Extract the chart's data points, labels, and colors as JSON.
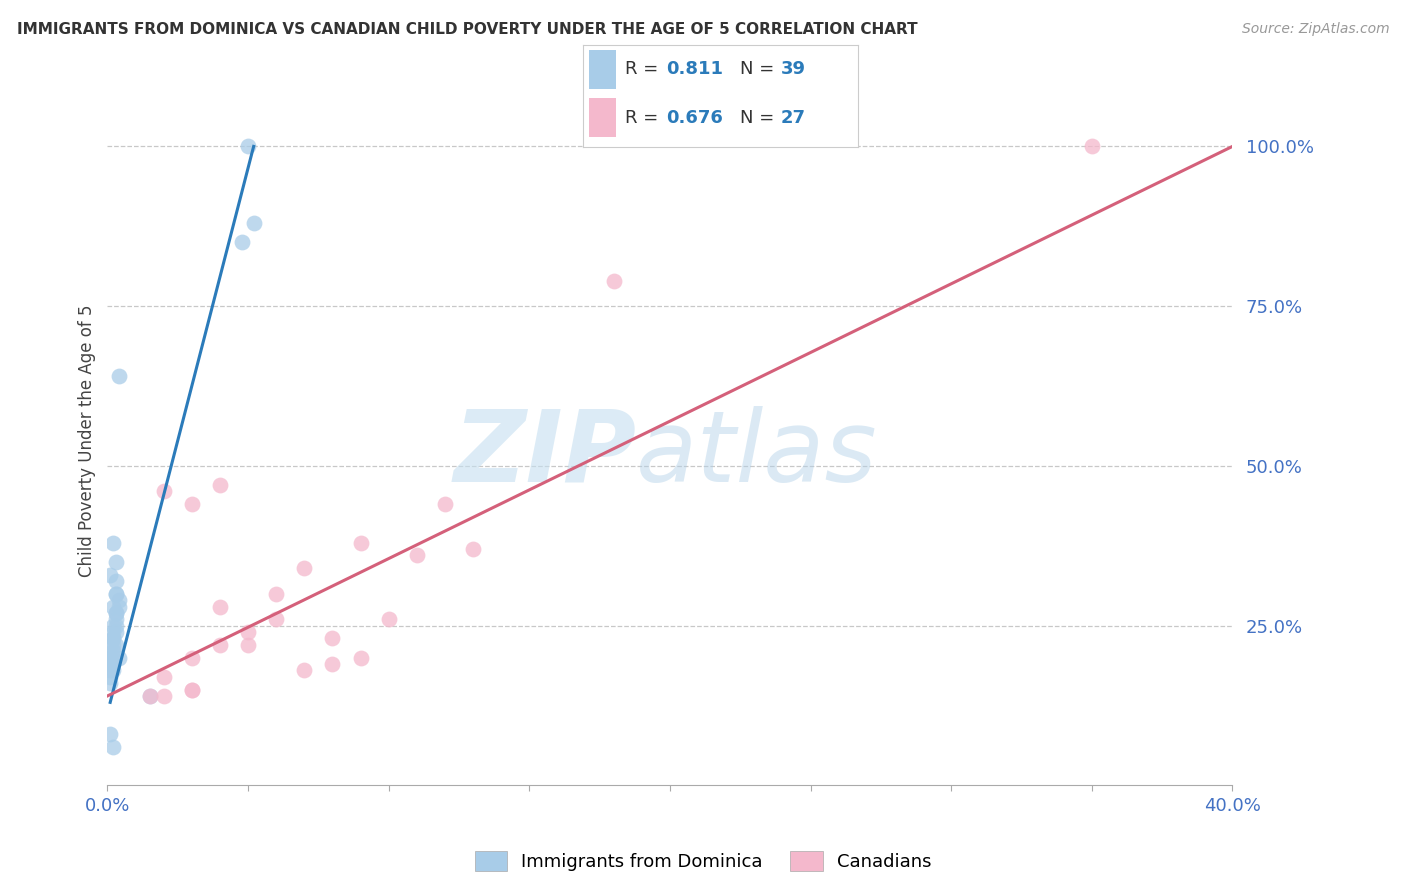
{
  "title": "IMMIGRANTS FROM DOMINICA VS CANADIAN CHILD POVERTY UNDER THE AGE OF 5 CORRELATION CHART",
  "source": "Source: ZipAtlas.com",
  "ylabel": "Child Poverty Under the Age of 5",
  "legend_label_blue": "Immigrants from Dominica",
  "legend_label_pink": "Canadians",
  "blue_color": "#a8cce8",
  "blue_dark": "#2b7bba",
  "pink_color": "#f4b8cc",
  "pink_dark": "#d4607a",
  "watermark_zip": "ZIP",
  "watermark_atlas": "atlas",
  "background_color": "#ffffff",
  "blue_r": "0.811",
  "blue_n": "39",
  "pink_r": "0.676",
  "pink_n": "27",
  "blue_scatter_x": [
    0.0003,
    0.0004,
    0.0002,
    0.0002,
    0.0003,
    0.0004,
    0.0003,
    0.0002,
    0.0003,
    0.0002,
    0.0003,
    0.0002,
    0.0001,
    0.0002,
    0.0003,
    0.0004,
    0.0003,
    0.0002,
    0.0003,
    0.0001,
    0.0002,
    0.0001,
    0.0003,
    0.0002,
    0.0001,
    0.0002,
    0.0001,
    0.0002,
    0.0003,
    0.0004,
    0.0001,
    0.0048,
    0.0052,
    0.0015,
    0.0001,
    0.0001,
    0.0001,
    0.005,
    0.0002
  ],
  "blue_scatter_y": [
    0.22,
    0.2,
    0.18,
    0.24,
    0.26,
    0.29,
    0.27,
    0.23,
    0.32,
    0.28,
    0.3,
    0.21,
    0.19,
    0.22,
    0.25,
    0.28,
    0.35,
    0.23,
    0.27,
    0.2,
    0.38,
    0.33,
    0.3,
    0.25,
    0.22,
    0.19,
    0.17,
    0.2,
    0.24,
    0.64,
    0.08,
    0.85,
    0.88,
    0.14,
    0.18,
    0.16,
    0.2,
    1.0,
    0.06
  ],
  "pink_scatter_x": [
    0.0015,
    0.002,
    0.002,
    0.003,
    0.003,
    0.004,
    0.003,
    0.005,
    0.006,
    0.004,
    0.007,
    0.008,
    0.009,
    0.01,
    0.007,
    0.013,
    0.003,
    0.005,
    0.006,
    0.009,
    0.011,
    0.012,
    0.018,
    0.004,
    0.002,
    0.008,
    0.035
  ],
  "pink_scatter_y": [
    0.14,
    0.17,
    0.46,
    0.44,
    0.15,
    0.22,
    0.2,
    0.22,
    0.26,
    0.28,
    0.34,
    0.19,
    0.2,
    0.26,
    0.18,
    0.37,
    0.15,
    0.24,
    0.3,
    0.38,
    0.36,
    0.44,
    0.79,
    0.47,
    0.14,
    0.23,
    1.0
  ],
  "blue_line_x": [
    0.0001,
    0.0052
  ],
  "blue_line_y": [
    0.13,
    1.0
  ],
  "pink_line_x": [
    0.0,
    0.04
  ],
  "pink_line_y": [
    0.14,
    1.0
  ],
  "xmin": 0.0,
  "xmax": 0.04,
  "ymin": 0.0,
  "ymax": 1.08,
  "ytick_values": [
    0.25,
    0.5,
    0.75,
    1.0
  ],
  "ytick_labels": [
    "25.0%",
    "50.0%",
    "75.0%",
    "100.0%"
  ],
  "xtick_label_left": "0.0%",
  "xtick_label_right": "40.0%"
}
